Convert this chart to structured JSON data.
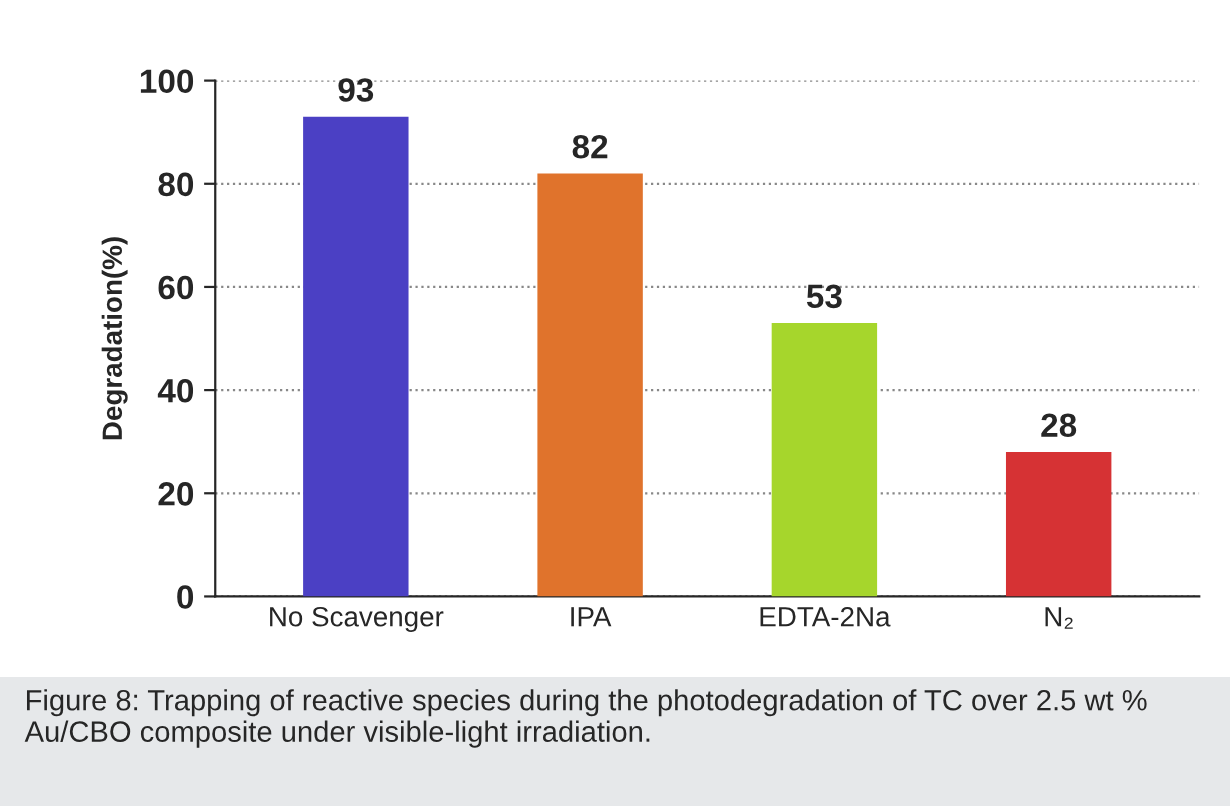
{
  "chart_data": {
    "type": "bar",
    "ylabel": "Degradation(%)",
    "categories": [
      "No Scavenger",
      "IPA",
      "EDTA-2Na",
      "N₂"
    ],
    "values": [
      93,
      82,
      53,
      28
    ],
    "colors": [
      "#4b40c4",
      "#e0732c",
      "#a6d62c",
      "#d63234"
    ],
    "ylim": [
      0,
      100
    ],
    "yticks": [
      0,
      20,
      40,
      60,
      80,
      100
    ],
    "grid": "y",
    "data_labels": true,
    "annotations": [
      "Figure 8: Trapping of reactive species during the photodegradation of TC over 2.5 wt % Au/CBO composite under visible-light irradiation."
    ]
  }
}
